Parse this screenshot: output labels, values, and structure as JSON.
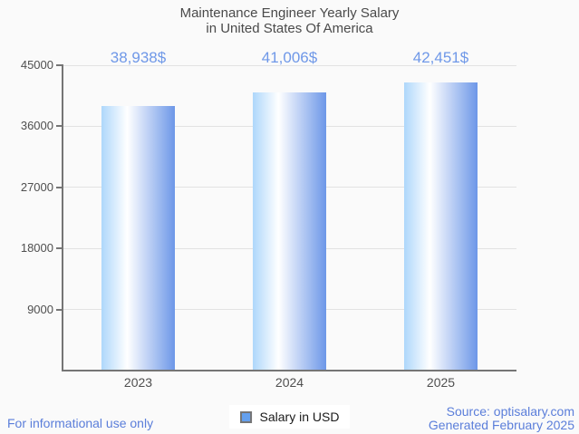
{
  "page": {
    "title_line1": "Maintenance Engineer Yearly Salary",
    "title_line2": "in United States Of America",
    "footer_left": "For informational use only",
    "source_line1": "Source: optisalary.com",
    "source_line2": "Generated February 2025"
  },
  "legend": {
    "label": "Salary in USD"
  },
  "colors": {
    "background": "#fafafa",
    "title_text": "#4a4a4a",
    "axis_text": "#4f4f4f",
    "axis_line": "#757575",
    "gridline": "#e2e2e2",
    "value_text": "#6f98e8",
    "footer_text": "#5b7eda",
    "bar_gradient_left": "#aed7fb",
    "bar_gradient_mid": "#ffffff",
    "bar_gradient_right": "#6d97e8",
    "legend_swatch": "#64a0ee",
    "legend_swatch_border": "#757575"
  },
  "chart_data": {
    "type": "bar",
    "title": "Maintenance Engineer Yearly Salary in United States Of America",
    "categories": [
      "2023",
      "2024",
      "2025"
    ],
    "values": [
      38938,
      41006,
      42451
    ],
    "value_labels": [
      "38,938$",
      "41,006$",
      "42,451$"
    ],
    "series_name": "Salary in USD",
    "xlabel": "",
    "ylabel": "",
    "ylim": [
      0,
      45000
    ],
    "yticks": [
      9000,
      18000,
      27000,
      36000,
      45000
    ],
    "grid": "horizontal",
    "legend_position": "bottom-center"
  }
}
